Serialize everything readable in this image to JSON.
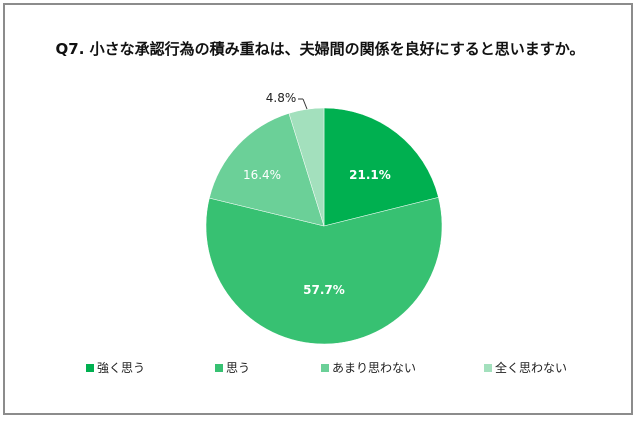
{
  "chart_data": {
    "type": "pie",
    "title": "Q7. 小さな承認行為の積み重ねは、夫婦間の関係を良好にすると思いますか。",
    "categories": [
      "強く思う",
      "思う",
      "あまり思わない",
      "全く思わない"
    ],
    "values": [
      21.1,
      57.7,
      16.4,
      4.8
    ],
    "labels": [
      "21.1%",
      "57.7%",
      "16.4%",
      "4.8%"
    ],
    "colors": [
      "#00b050",
      "#37c172",
      "#6bd098",
      "#a3e0bd"
    ],
    "start_angle_deg": 0,
    "direction": "clockwise",
    "legend_position": "bottom"
  },
  "title": "Q7. 小さな承認行為の積み重ねは、夫婦間の関係を良好にすると思いますか。",
  "legend": [
    {
      "label": "強く思う",
      "color": "#00b050"
    },
    {
      "label": "思う",
      "color": "#37c172"
    },
    {
      "label": "あまり思わない",
      "color": "#6bd098"
    },
    {
      "label": "全く思わない",
      "color": "#a3e0bd"
    }
  ],
  "slice_labels": [
    "21.1%",
    "57.7%",
    "16.4%",
    "4.8%"
  ]
}
